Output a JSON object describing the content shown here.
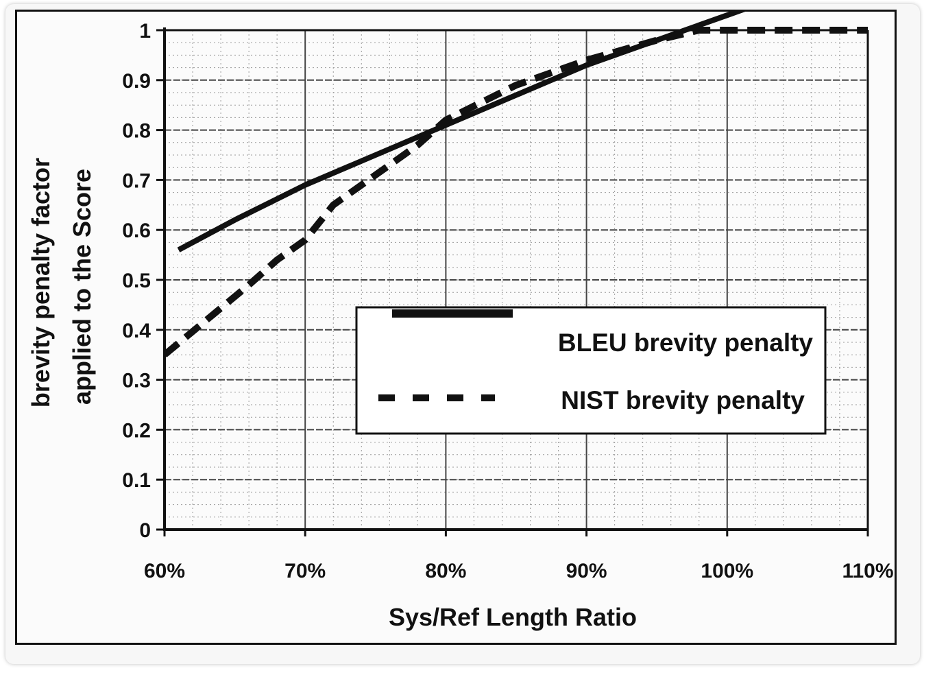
{
  "chart_data": {
    "type": "line",
    "title": "",
    "xlabel": "Sys/Ref Length Ratio",
    "ylabel_lines": [
      "brevity penalty factor",
      "applied to the Score"
    ],
    "x_ticks": [
      {
        "value": 0.6,
        "label": "60%"
      },
      {
        "value": 0.7,
        "label": "70%"
      },
      {
        "value": 0.8,
        "label": "80%"
      },
      {
        "value": 0.9,
        "label": "90%"
      },
      {
        "value": 1.0,
        "label": "100%"
      },
      {
        "value": 1.1,
        "label": "110%"
      }
    ],
    "y_ticks": [
      {
        "value": 0,
        "label": "0"
      },
      {
        "value": 0.1,
        "label": "0.1"
      },
      {
        "value": 0.2,
        "label": "0.2"
      },
      {
        "value": 0.3,
        "label": "0.3"
      },
      {
        "value": 0.4,
        "label": "0.4"
      },
      {
        "value": 0.5,
        "label": "0.5"
      },
      {
        "value": 0.6,
        "label": "0.6"
      },
      {
        "value": 0.7,
        "label": "0.7"
      },
      {
        "value": 0.8,
        "label": "0.8"
      },
      {
        "value": 0.9,
        "label": "0.9"
      },
      {
        "value": 1,
        "label": "1"
      }
    ],
    "xlim": [
      0.6,
      1.1
    ],
    "ylim": [
      0,
      1
    ],
    "grid": true,
    "legend_position": "center-right",
    "series": [
      {
        "name": "BLEU brevity penalty",
        "style": "solid",
        "color": "#111111",
        "x": [
          0.61,
          0.65,
          0.7,
          0.75,
          0.8,
          0.85,
          0.9,
          0.95,
          0.97,
          1.0,
          1.02
        ],
        "y": [
          0.56,
          0.62,
          0.69,
          0.75,
          0.81,
          0.87,
          0.93,
          0.98,
          1.0,
          1.03,
          1.05
        ]
      },
      {
        "name": "NIST brevity penalty",
        "style": "dashed",
        "color": "#111111",
        "x": [
          0.6,
          0.63,
          0.66,
          0.68,
          0.7,
          0.72,
          0.75,
          0.78,
          0.8,
          0.85,
          0.9,
          0.95,
          0.98,
          1.0,
          1.05,
          1.1
        ],
        "y": [
          0.35,
          0.42,
          0.49,
          0.54,
          0.58,
          0.65,
          0.71,
          0.77,
          0.82,
          0.89,
          0.94,
          0.98,
          1.0,
          1.0,
          1.0,
          1.0
        ]
      }
    ]
  }
}
